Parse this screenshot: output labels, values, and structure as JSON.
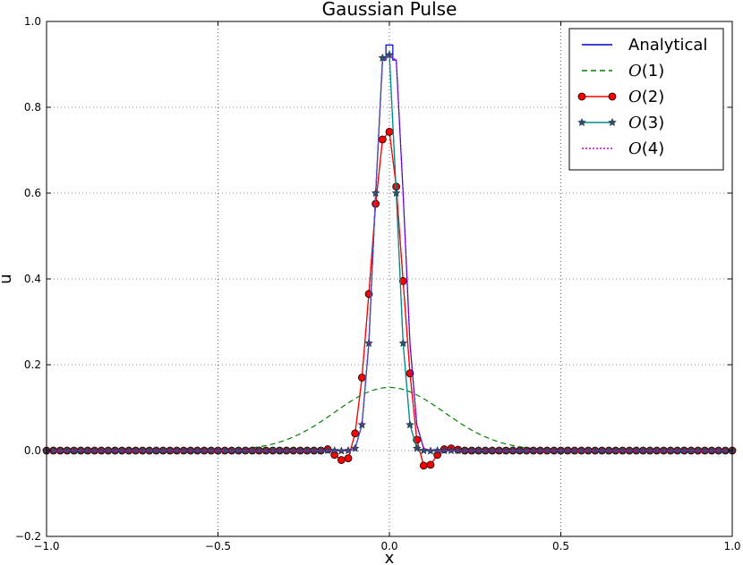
{
  "chart_data": {
    "type": "line",
    "title": "Gaussian Pulse",
    "xlabel": "x",
    "ylabel": "u",
    "xlim": [
      -1.0,
      1.0
    ],
    "ylim": [
      -0.2,
      1.0
    ],
    "xticks": [
      -1.0,
      -0.5,
      0.0,
      0.5,
      1.0
    ],
    "yticks": [
      -0.2,
      0.0,
      0.2,
      0.4,
      0.6,
      0.8,
      1.0
    ],
    "xtick_labels": [
      "−1.0",
      "−0.5",
      "0.0",
      "0.5",
      "1.0"
    ],
    "ytick_labels": [
      "−0.2",
      "0.0",
      "0.2",
      "0.4",
      "0.6",
      "0.8",
      "1.0"
    ],
    "grid": true,
    "legend_position": "top-right",
    "series": [
      {
        "name": "Analytical",
        "legend_prefix": "",
        "legend_math": "",
        "legend_suffix": "Analytical",
        "color": "#0000cc",
        "style": "solid",
        "marker": "none",
        "x": [
          -1.0,
          -0.2,
          -0.12,
          -0.1,
          -0.08,
          -0.06,
          -0.04,
          -0.02,
          -0.01,
          -0.01,
          0.01,
          0.01,
          0.02,
          0.04,
          0.06,
          0.08,
          0.1,
          0.12,
          0.2,
          1.0
        ],
        "values": [
          0.0,
          0.0,
          0.0,
          0.005,
          0.06,
          0.25,
          0.6,
          0.91,
          0.91,
          0.945,
          0.945,
          0.91,
          0.91,
          0.6,
          0.25,
          0.06,
          0.005,
          0.0,
          0.0,
          0.0
        ]
      },
      {
        "name": "O(1)",
        "legend_prefix": "",
        "legend_math": "O",
        "legend_suffix": "(1)",
        "color": "#008000",
        "style": "dashed",
        "marker": "none",
        "gaussian": {
          "amplitude": 0.147,
          "sigma": 0.16
        }
      },
      {
        "name": "O(2)",
        "legend_prefix": "",
        "legend_math": "O",
        "legend_suffix": "(2)",
        "color": "#ff0000",
        "style": "solid",
        "marker": "circle",
        "x": [
          -0.2,
          -0.18,
          -0.16,
          -0.14,
          -0.12,
          -0.1,
          -0.08,
          -0.06,
          -0.04,
          -0.02,
          0.0,
          0.02,
          0.04,
          0.06,
          0.08,
          0.1,
          0.12,
          0.14,
          0.16,
          0.18,
          0.2
        ],
        "values": [
          0.0,
          0.003,
          -0.01,
          -0.022,
          -0.018,
          0.04,
          0.17,
          0.365,
          0.575,
          0.725,
          0.743,
          0.615,
          0.395,
          0.18,
          0.025,
          -0.035,
          -0.033,
          -0.01,
          0.003,
          0.005,
          0.002
        ]
      },
      {
        "name": "O(3)",
        "legend_prefix": "",
        "legend_math": "O",
        "legend_suffix": "(3)",
        "color": "#008b8b",
        "style": "solid",
        "marker": "star",
        "x": [
          -0.2,
          -0.18,
          -0.16,
          -0.14,
          -0.12,
          -0.1,
          -0.08,
          -0.06,
          -0.04,
          -0.02,
          0.0,
          0.02,
          0.04,
          0.06,
          0.08,
          0.1,
          0.12,
          0.14,
          0.16,
          0.18,
          0.2
        ],
        "values": [
          0.0,
          0.0,
          0.0,
          -0.001,
          0.0,
          0.005,
          0.06,
          0.25,
          0.6,
          0.915,
          0.922,
          0.6,
          0.25,
          0.06,
          0.005,
          0.0,
          -0.001,
          0.0,
          0.0,
          0.0,
          0.0
        ]
      },
      {
        "name": "O(4)",
        "legend_prefix": "",
        "legend_math": "O",
        "legend_suffix": "(4)",
        "color": "#cc00cc",
        "style": "dotted",
        "marker": "none",
        "x": [
          -1.0,
          -0.12,
          -0.1,
          -0.08,
          -0.06,
          -0.04,
          -0.02,
          0.0,
          0.02,
          0.04,
          0.06,
          0.08,
          0.1,
          0.12,
          1.0
        ],
        "values": [
          0.0,
          0.0,
          0.005,
          0.06,
          0.25,
          0.6,
          0.91,
          0.92,
          0.91,
          0.6,
          0.25,
          0.06,
          0.005,
          0.0,
          0.0
        ]
      }
    ]
  }
}
